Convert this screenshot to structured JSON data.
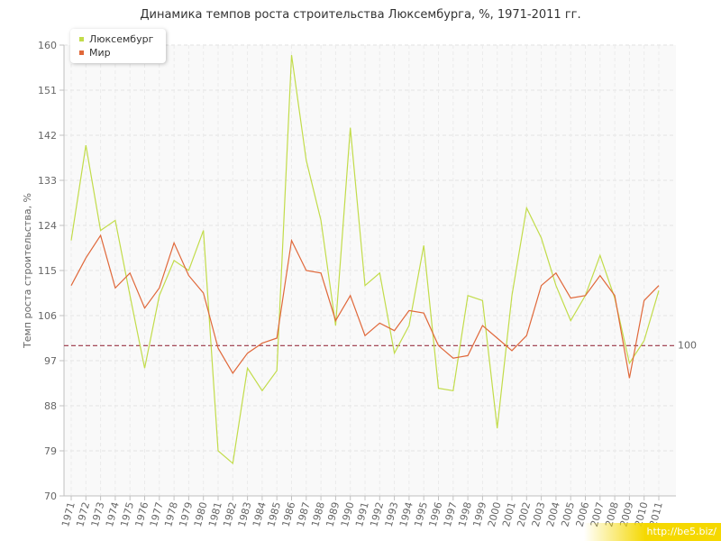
{
  "chart_data": {
    "type": "line",
    "title": "Динамика темпов роста строительства Люксембурга, %, 1971-2011 гг.",
    "ylabel": "Темп роста строительства, %",
    "xlabel": "",
    "ylim": [
      70,
      160
    ],
    "yticks": [
      70,
      79,
      88,
      97,
      106,
      115,
      124,
      133,
      142,
      151,
      160
    ],
    "grid": true,
    "legend_position": "top-left",
    "reference_line": {
      "value": 100,
      "label": "100",
      "color": "#993344"
    },
    "x": [
      "1971",
      "1972",
      "1973",
      "1974",
      "1975",
      "1976",
      "1977",
      "1978",
      "1979",
      "1980",
      "1981",
      "1982",
      "1983",
      "1984",
      "1985",
      "1986",
      "1987",
      "1988",
      "1989",
      "1990",
      "1991",
      "1992",
      "1993",
      "1994",
      "1995",
      "1996",
      "1997",
      "1998",
      "1999",
      "2000",
      "2001",
      "2002",
      "2003",
      "2004",
      "2005",
      "2006",
      "2007",
      "2008",
      "2009",
      "2010",
      "2011"
    ],
    "series": [
      {
        "name": "Люксембург",
        "color": "#c2dc4a",
        "values": [
          121,
          140,
          123,
          125,
          110,
          95.5,
          110,
          117,
          115,
          123,
          79,
          76.5,
          95.5,
          91,
          95,
          158,
          137,
          125,
          104,
          143.5,
          112,
          114.5,
          98.5,
          104,
          120,
          91.5,
          91,
          110,
          109,
          83.5,
          110,
          127.5,
          121.5,
          112,
          105,
          110,
          118,
          109.5,
          96.5,
          101,
          111
        ]
      },
      {
        "name": "Мир",
        "color": "#e0683a",
        "values": [
          112,
          117.5,
          122,
          111.5,
          114.5,
          107.5,
          111.5,
          120.5,
          114,
          110.5,
          99.5,
          94.5,
          98.5,
          100.5,
          101.5,
          121,
          115,
          114.5,
          105,
          110,
          102,
          104.5,
          103,
          107,
          106.5,
          100,
          97.5,
          98,
          104,
          101.5,
          99,
          102,
          112,
          114.5,
          109.5,
          110,
          114,
          110,
          93.5,
          109,
          112
        ]
      }
    ]
  },
  "watermark": "http://be5.biz/"
}
